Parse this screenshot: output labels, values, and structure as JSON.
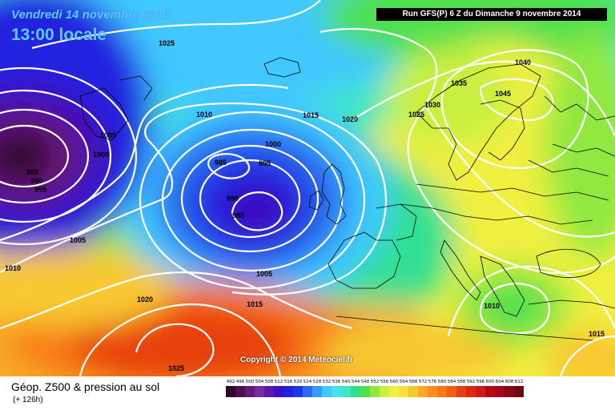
{
  "header": {
    "date_line": "Vendredi 14 novembre 2014",
    "time_line": "13:00 locale",
    "run_info": "Run GFS(P) 6 Z du Dimanche 9 novembre 2014"
  },
  "footer": {
    "legend_title": "Géop. Z500 & pression au sol",
    "lead_time": "(+ 126h)",
    "copyright": "Copyright © 2014 Meteociel.fr"
  },
  "color_scale": {
    "labels": [
      "492",
      "496",
      "500",
      "504",
      "508",
      "512",
      "516",
      "520",
      "524",
      "528",
      "532",
      "536",
      "540",
      "544",
      "548",
      "552",
      "556",
      "560",
      "564",
      "568",
      "572",
      "576",
      "580",
      "584",
      "588",
      "592",
      "596",
      "600",
      "604",
      "608",
      "612"
    ],
    "colors": [
      "#2a0a2a",
      "#4a1050",
      "#6a1878",
      "#7a2a9a",
      "#5a1aa8",
      "#3a10c0",
      "#2020e0",
      "#1a3ae8",
      "#2a6af0",
      "#3a9af8",
      "#40c8ff",
      "#48e0f0",
      "#40e8c0",
      "#30e090",
      "#50e050",
      "#90e840",
      "#c8f040",
      "#f0f040",
      "#f8e038",
      "#f8c830",
      "#f8a828",
      "#f89020",
      "#f87818",
      "#f06010",
      "#e84010",
      "#e02810",
      "#d01818",
      "#b80818",
      "#a00818",
      "#880818",
      "#700810"
    ]
  },
  "isobar_labels": [
    "1025",
    "1010",
    "1005",
    "1000",
    "985",
    "990",
    "995",
    "1015",
    "1020",
    "1000",
    "985",
    "995",
    "990",
    "985",
    "1005",
    "1015",
    "1005",
    "1010",
    "1020",
    "1025",
    "1040",
    "1035",
    "1045",
    "1030",
    "1025",
    "1010",
    "1015"
  ],
  "colors": {
    "background": "#ffffff",
    "banner": "#000000",
    "header_text": "#5fc8ff"
  }
}
